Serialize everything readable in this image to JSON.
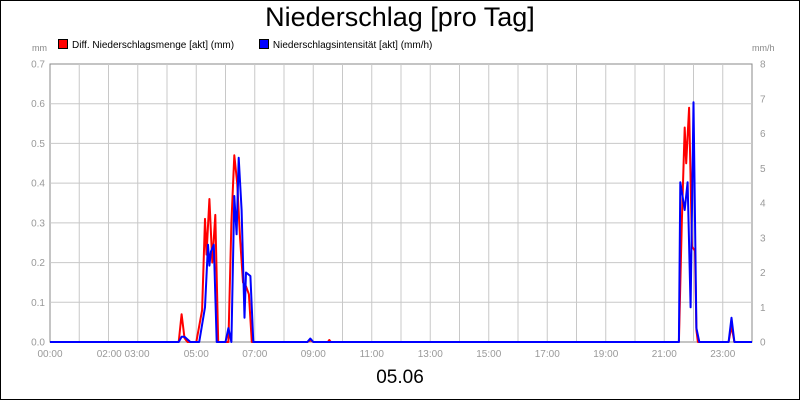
{
  "chart_data": {
    "type": "line",
    "title": "Niederschlag [pro Tag]",
    "date_label": "05.06",
    "left_unit": "mm",
    "right_unit": "mm/h",
    "ylim_left": [
      0,
      0.7
    ],
    "ylim_right": [
      0,
      8
    ],
    "y_ticks_left": [
      "0.0",
      "0.1",
      "0.2",
      "0.3",
      "0.4",
      "0.5",
      "0.6",
      "0.7"
    ],
    "y_ticks_right": [
      "0",
      "1",
      "2",
      "3",
      "4",
      "5",
      "6",
      "7",
      "8"
    ],
    "x_range_hours": [
      0,
      24
    ],
    "x_ticks": [
      "00:00",
      "02:00 03:00",
      "05:00",
      "07:00",
      "09:00",
      "11:00",
      "13:00",
      "15:00",
      "17:00",
      "19:00",
      "21:00",
      "23:00"
    ],
    "grid": true,
    "legend_position": "top-left",
    "series": [
      {
        "name": "Diff. Niederschlagsmenge [akt] (mm)",
        "color": "#ff0000",
        "axis": "left",
        "points": [
          [
            0,
            0
          ],
          [
            4.4,
            0
          ],
          [
            4.5,
            0.07
          ],
          [
            4.6,
            0.01
          ],
          [
            4.7,
            0
          ],
          [
            5.0,
            0
          ],
          [
            5.2,
            0.08
          ],
          [
            5.3,
            0.31
          ],
          [
            5.35,
            0.22
          ],
          [
            5.45,
            0.36
          ],
          [
            5.55,
            0.2
          ],
          [
            5.65,
            0.32
          ],
          [
            5.75,
            0
          ],
          [
            6.1,
            0
          ],
          [
            6.2,
            0.3
          ],
          [
            6.3,
            0.47
          ],
          [
            6.4,
            0.4
          ],
          [
            6.5,
            0.26
          ],
          [
            6.6,
            0.15
          ],
          [
            6.7,
            0.14
          ],
          [
            6.8,
            0.12
          ],
          [
            6.9,
            0
          ],
          [
            8.8,
            0
          ],
          [
            8.9,
            0.005
          ],
          [
            9.0,
            0
          ],
          [
            9.5,
            0
          ],
          [
            9.55,
            0.005
          ],
          [
            9.6,
            0
          ],
          [
            21.5,
            0
          ],
          [
            21.6,
            0.3
          ],
          [
            21.7,
            0.54
          ],
          [
            21.75,
            0.45
          ],
          [
            21.85,
            0.59
          ],
          [
            21.95,
            0.24
          ],
          [
            22.05,
            0.23
          ],
          [
            22.1,
            0.03
          ],
          [
            22.15,
            0
          ],
          [
            23.2,
            0
          ],
          [
            23.3,
            0.04
          ],
          [
            23.4,
            0
          ],
          [
            24,
            0
          ]
        ]
      },
      {
        "name": "Niederschlagsintensität [akt] (mm/h)",
        "color": "#0000ff",
        "axis": "right",
        "points": [
          [
            0,
            0
          ],
          [
            4.4,
            0
          ],
          [
            4.5,
            0.15
          ],
          [
            4.6,
            0.15
          ],
          [
            4.8,
            0
          ],
          [
            5.1,
            0
          ],
          [
            5.3,
            1.0
          ],
          [
            5.4,
            2.8
          ],
          [
            5.45,
            2.2
          ],
          [
            5.5,
            2.6
          ],
          [
            5.6,
            2.8
          ],
          [
            5.7,
            0
          ],
          [
            6.0,
            0
          ],
          [
            6.1,
            0.4
          ],
          [
            6.2,
            0
          ],
          [
            6.3,
            4.2
          ],
          [
            6.38,
            3.1
          ],
          [
            6.45,
            5.3
          ],
          [
            6.55,
            3.8
          ],
          [
            6.65,
            0.7
          ],
          [
            6.7,
            2.0
          ],
          [
            6.85,
            1.9
          ],
          [
            6.95,
            0
          ],
          [
            8.8,
            0
          ],
          [
            8.9,
            0.1
          ],
          [
            9.0,
            0
          ],
          [
            21.5,
            0
          ],
          [
            21.55,
            4.6
          ],
          [
            21.7,
            3.8
          ],
          [
            21.8,
            4.6
          ],
          [
            21.9,
            1.0
          ],
          [
            22.0,
            6.9
          ],
          [
            22.1,
            0.4
          ],
          [
            22.2,
            0
          ],
          [
            23.2,
            0
          ],
          [
            23.3,
            0.7
          ],
          [
            23.4,
            0
          ],
          [
            24,
            0
          ]
        ]
      }
    ]
  }
}
